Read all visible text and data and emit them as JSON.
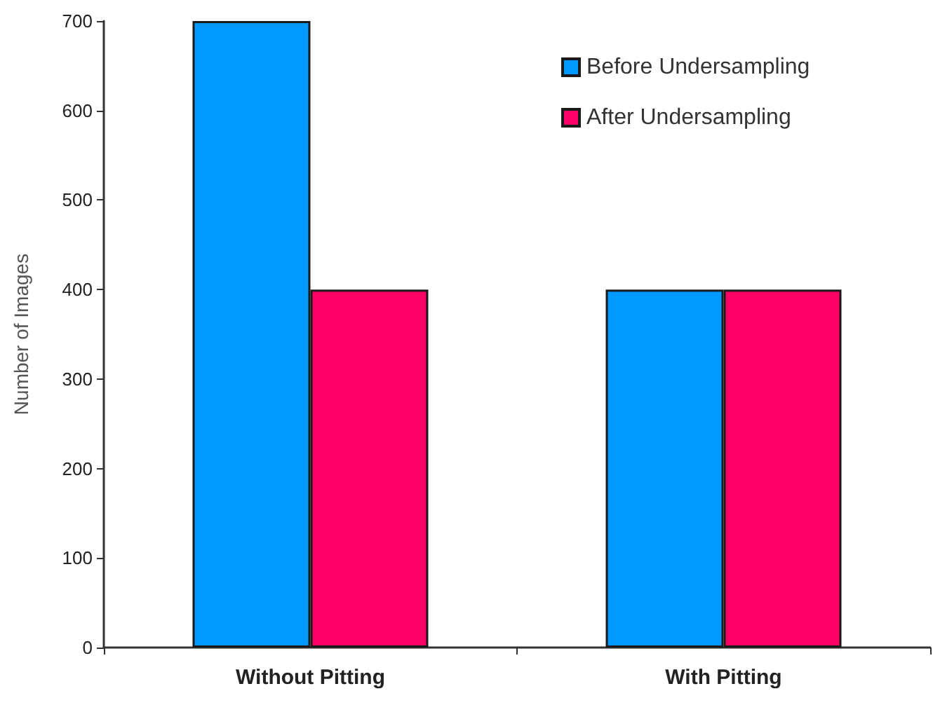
{
  "chart_data": {
    "type": "bar",
    "ylabel": "Number of Images",
    "categories": [
      "Without Pitting",
      "With Pitting"
    ],
    "series": [
      {
        "name": "Before Undersampling",
        "color": "#0099ff",
        "values": [
          700,
          400
        ]
      },
      {
        "name": "After Undersampling",
        "color": "#ff0066",
        "values": [
          400,
          400
        ]
      }
    ],
    "ylim": [
      0,
      700
    ],
    "yticks": [
      0,
      100,
      200,
      300,
      400,
      500,
      600,
      700
    ],
    "grid": false,
    "legend": "top right"
  }
}
